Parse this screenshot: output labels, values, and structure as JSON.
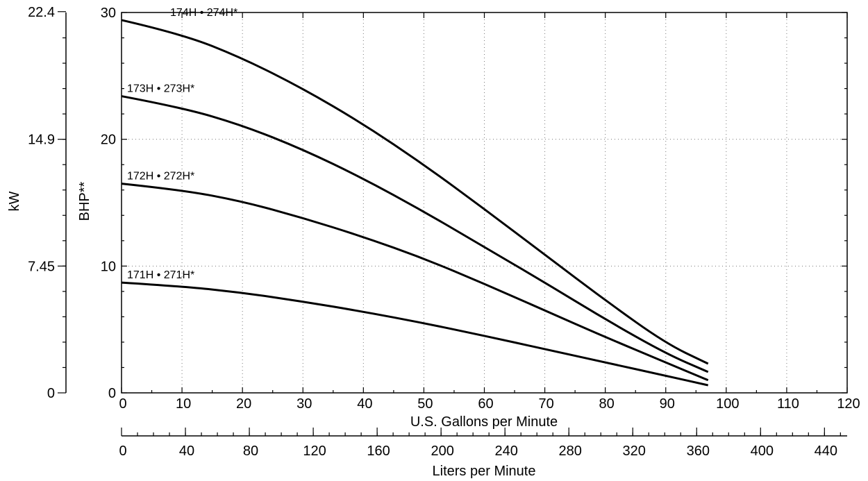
{
  "chart_data": {
    "type": "line",
    "title": "",
    "xlabel": "U.S. Gallons per Minute",
    "ylabel": "BHP**",
    "xlim": [
      0,
      120
    ],
    "ylim": [
      0,
      30
    ],
    "x_ticks": [
      "0",
      "10",
      "20",
      "30",
      "40",
      "50",
      "60",
      "70",
      "80",
      "90",
      "100",
      "110",
      "120"
    ],
    "y_ticks": [
      "0",
      "10",
      "20",
      "30"
    ],
    "grid": true,
    "secondary_x_axis": {
      "label": "Liters per Minute",
      "ticks": [
        "0",
        "40",
        "80",
        "120",
        "160",
        "200",
        "240",
        "280",
        "320",
        "360",
        "400",
        "440"
      ],
      "lpm_per_gpm": 3.785
    },
    "secondary_y_axis": {
      "label": "kW",
      "ticks": [
        "0",
        "7.45",
        "14.9",
        "22.4"
      ],
      "kw_per_bhp": 0.745
    },
    "series": [
      {
        "name": "171H • 271H*",
        "x": [
          0,
          10,
          20,
          30,
          40,
          50,
          60,
          70,
          80,
          90,
          97
        ],
        "y": [
          8.7,
          8.4,
          7.9,
          7.2,
          6.4,
          5.5,
          4.5,
          3.45,
          2.4,
          1.35,
          0.6
        ]
      },
      {
        "name": "172H • 272H*",
        "x": [
          0,
          10,
          20,
          30,
          40,
          50,
          60,
          70,
          80,
          90,
          97
        ],
        "y": [
          16.5,
          16.0,
          15.1,
          13.8,
          12.3,
          10.6,
          8.6,
          6.5,
          4.4,
          2.4,
          1.0
        ]
      },
      {
        "name": "173H • 273H*",
        "x": [
          0,
          10,
          20,
          30,
          40,
          50,
          60,
          70,
          80,
          90,
          97
        ],
        "y": [
          23.4,
          22.5,
          21.1,
          19.2,
          16.9,
          14.3,
          11.5,
          8.7,
          5.8,
          3.1,
          1.65
        ]
      },
      {
        "name": "174H • 274H*",
        "x": [
          0,
          10,
          20,
          30,
          40,
          50,
          60,
          70,
          80,
          90,
          97
        ],
        "y": [
          29.4,
          28.3,
          26.4,
          24.0,
          21.2,
          18.0,
          14.5,
          10.9,
          7.3,
          3.9,
          2.3
        ]
      }
    ]
  }
}
